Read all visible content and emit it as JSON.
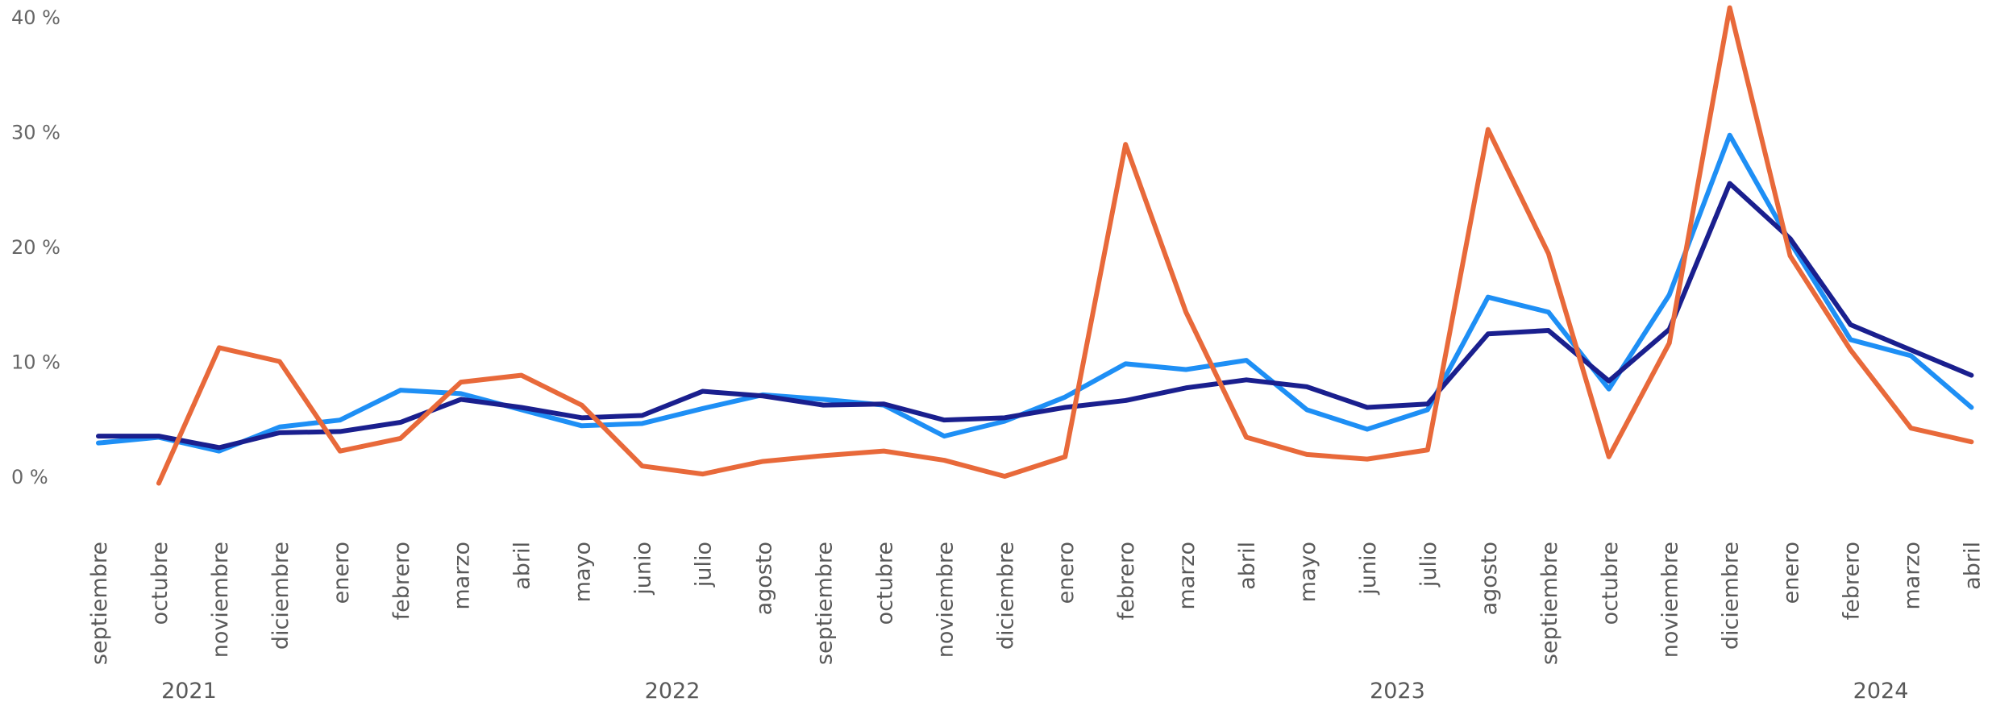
{
  "chart_data": {
    "type": "line",
    "title": "",
    "xlabel": "",
    "ylabel": "",
    "y_unit": "%",
    "y_ticks": [
      0,
      10,
      20,
      30,
      40
    ],
    "y_tick_labels": [
      "0 %",
      "10 %",
      "20 %",
      "30 %",
      "40 %"
    ],
    "ylim": [
      -5,
      41
    ],
    "grid": false,
    "legend": "none",
    "x": [
      "septiembre",
      "octubre",
      "noviembre",
      "diciembre",
      "enero",
      "febrero",
      "marzo",
      "abril",
      "mayo",
      "junio",
      "julio",
      "agosto",
      "septiembre",
      "octubre",
      "noviembre",
      "diciembre",
      "enero",
      "febrero",
      "marzo",
      "abril",
      "mayo",
      "junio",
      "julio",
      "agosto",
      "septiembre",
      "octubre",
      "noviembre",
      "diciembre",
      "enero",
      "febrero",
      "marzo",
      "abril"
    ],
    "year_groups": [
      {
        "label": "2021",
        "start": 0,
        "end": 3
      },
      {
        "label": "2022",
        "start": 4,
        "end": 15
      },
      {
        "label": "2023",
        "start": 16,
        "end": 27
      },
      {
        "label": "2024",
        "start": 28,
        "end": 31
      }
    ],
    "series": [
      {
        "color": "#1e8ff5",
        "values": [
          2.9,
          3.4,
          2.2,
          4.3,
          4.9,
          7.5,
          7.2,
          5.8,
          4.4,
          4.6,
          5.9,
          7.1,
          6.7,
          6.2,
          3.5,
          4.8,
          6.9,
          9.8,
          9.3,
          10.1,
          5.8,
          4.1,
          5.8,
          15.6,
          14.3,
          7.6,
          15.8,
          29.7,
          20.4,
          11.9,
          10.5,
          6.0
        ]
      },
      {
        "color": "#1a1f8e",
        "values": [
          3.5,
          3.5,
          2.5,
          3.8,
          3.9,
          4.7,
          6.7,
          6.0,
          5.1,
          5.3,
          7.4,
          7.0,
          6.2,
          6.3,
          4.9,
          5.1,
          6.0,
          6.6,
          7.7,
          8.4,
          7.8,
          6.0,
          6.3,
          12.4,
          12.7,
          8.3,
          12.8,
          25.5,
          20.7,
          13.2,
          11.0,
          8.8
        ]
      },
      {
        "color": "#e8693a",
        "values": [
          null,
          -0.6,
          11.2,
          10.0,
          2.2,
          3.3,
          8.2,
          8.8,
          6.2,
          0.9,
          0.2,
          1.3,
          1.8,
          2.2,
          1.4,
          0.0,
          1.7,
          28.9,
          14.3,
          3.4,
          1.9,
          1.5,
          2.3,
          30.2,
          19.4,
          1.7,
          11.6,
          40.8,
          19.2,
          11.0,
          4.2,
          3.0
        ]
      }
    ]
  }
}
